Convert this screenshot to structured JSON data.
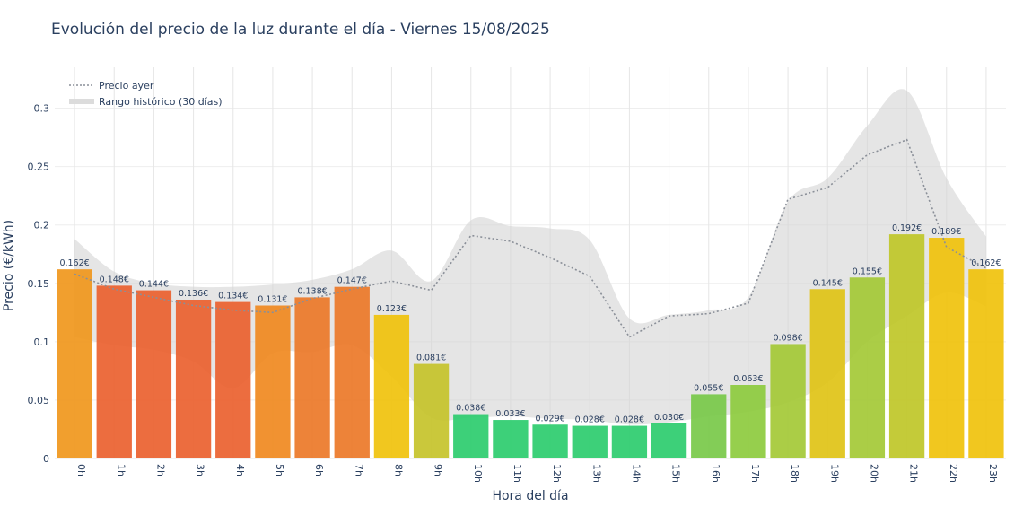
{
  "chart_data": {
    "type": "bar",
    "title": "Evolución del precio de la luz durante el día - Viernes 15/08/2025",
    "xlabel": "Hora del día",
    "ylabel": "Precio (€/kWh)",
    "ylim": [
      0,
      0.335
    ],
    "yticks": [
      0,
      0.05,
      0.1,
      0.15,
      0.2,
      0.25,
      0.3
    ],
    "ytick_labels": [
      "0",
      "0.05",
      "0.1",
      "0.15",
      "0.2",
      "0.25",
      "0.3"
    ],
    "grid": true,
    "legend_position": "top-left",
    "categories": [
      "0h",
      "1h",
      "2h",
      "3h",
      "4h",
      "5h",
      "6h",
      "7h",
      "8h",
      "9h",
      "10h",
      "11h",
      "12h",
      "13h",
      "14h",
      "15h",
      "16h",
      "17h",
      "18h",
      "19h",
      "20h",
      "21h",
      "22h",
      "23h"
    ],
    "series": [
      {
        "type": "bar",
        "values": [
          0.162,
          0.148,
          0.144,
          0.136,
          0.134,
          0.131,
          0.138,
          0.147,
          0.123,
          0.081,
          0.038,
          0.033,
          0.029,
          0.028,
          0.028,
          0.03,
          0.055,
          0.063,
          0.098,
          0.145,
          0.155,
          0.192,
          0.189,
          0.162
        ],
        "labels": [
          "0.162€",
          "0.148€",
          "0.144€",
          "0.136€",
          "0.134€",
          "0.131€",
          "0.138€",
          "0.147€",
          "0.123€",
          "0.081€",
          "0.038€",
          "0.033€",
          "0.029€",
          "0.028€",
          "0.028€",
          "0.030€",
          "0.055€",
          "0.063€",
          "0.098€",
          "0.145€",
          "0.155€",
          "0.192€",
          "0.189€",
          "0.162€"
        ],
        "colors": [
          "#f0981e",
          "#eb6230",
          "#eb6230",
          "#eb6230",
          "#eb6230",
          "#f08a21",
          "#ec7a2a",
          "#ec7a2a",
          "#f0c30e",
          "#c6c42c",
          "#2ecc6f",
          "#2ecc6f",
          "#2ecc6f",
          "#2ecc6f",
          "#2ecc6f",
          "#2ecc6f",
          "#7ac94a",
          "#8ecb40",
          "#a5c938",
          "#e0c418",
          "#a5c938",
          "#c0c72a",
          "#f0c30e",
          "#f0c30e"
        ]
      },
      {
        "name": "Precio ayer",
        "type": "line",
        "style": "dotted",
        "color": "#8a8f98",
        "values": [
          0.158,
          0.145,
          0.138,
          0.131,
          0.127,
          0.125,
          0.137,
          0.145,
          0.152,
          0.144,
          0.191,
          0.186,
          0.172,
          0.156,
          0.104,
          0.122,
          0.124,
          0.133,
          0.222,
          0.232,
          0.26,
          0.273,
          0.181,
          0.163
        ]
      },
      {
        "name": "Rango histórico (30 días)",
        "type": "area",
        "color": "#d3d3d3",
        "upper": [
          0.188,
          0.16,
          0.15,
          0.147,
          0.147,
          0.149,
          0.153,
          0.162,
          0.178,
          0.152,
          0.204,
          0.199,
          0.197,
          0.187,
          0.12,
          0.123,
          0.127,
          0.138,
          0.22,
          0.24,
          0.285,
          0.315,
          0.24,
          0.19
        ],
        "lower": [
          0.104,
          0.097,
          0.093,
          0.083,
          0.06,
          0.09,
          0.091,
          0.097,
          0.07,
          0.035,
          0.035,
          0.036,
          0.034,
          0.033,
          0.029,
          0.031,
          0.036,
          0.04,
          0.048,
          0.065,
          0.1,
          0.122,
          0.142,
          0.13
        ]
      }
    ]
  }
}
